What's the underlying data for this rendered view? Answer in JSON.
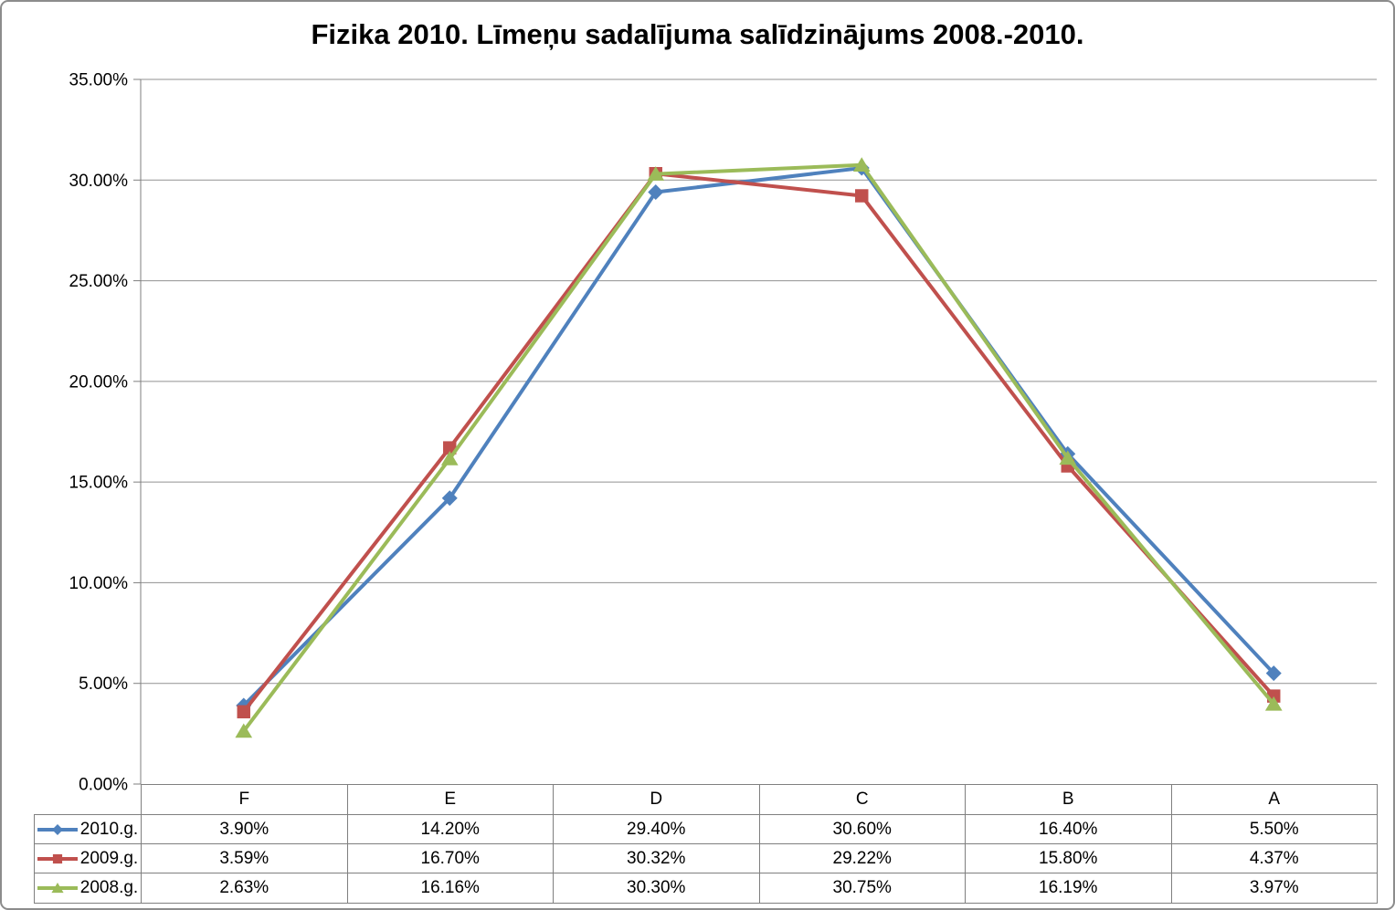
{
  "title": "Fizika 2010. Līmeņu sadalījuma salīdzinājums 2008.-2010.",
  "chart_data": {
    "type": "line",
    "title": "Fizika 2010. Līmeņu sadalījuma salīdzinājums 2008.-2010.",
    "categories": [
      "F",
      "E",
      "D",
      "C",
      "B",
      "A"
    ],
    "series": [
      {
        "name": "2010.g.",
        "color": "#4F81BD",
        "marker": "diamond",
        "values": [
          3.9,
          14.2,
          29.4,
          30.6,
          16.4,
          5.5
        ]
      },
      {
        "name": "2009.g.",
        "color": "#C0504D",
        "marker": "square",
        "values": [
          3.59,
          16.7,
          30.32,
          29.22,
          15.8,
          4.37
        ]
      },
      {
        "name": "2008.g.",
        "color": "#9BBB59",
        "marker": "triangle",
        "values": [
          2.63,
          16.16,
          30.3,
          30.75,
          16.19,
          3.97
        ]
      }
    ],
    "table_values": [
      [
        "3.90%",
        "14.20%",
        "29.40%",
        "30.60%",
        "16.40%",
        "5.50%"
      ],
      [
        "3.59%",
        "16.70%",
        "30.32%",
        "29.22%",
        "15.80%",
        "4.37%"
      ],
      [
        "2.63%",
        "16.16%",
        "30.30%",
        "30.75%",
        "16.19%",
        "3.97%"
      ]
    ],
    "ylim": [
      0,
      35
    ],
    "ytick_step": 5,
    "yticks": [
      "0.00%",
      "5.00%",
      "10.00%",
      "15.00%",
      "20.00%",
      "25.00%",
      "30.00%",
      "35.00%"
    ],
    "grid": true,
    "legend_position": "table-left",
    "colors": {
      "gridline": "#919191",
      "axis": "#7F7F7F",
      "table_border": "#7F7F7F",
      "text": "#000000",
      "frame_border": "#8C8C8C",
      "background": "#FFFFFF"
    }
  }
}
